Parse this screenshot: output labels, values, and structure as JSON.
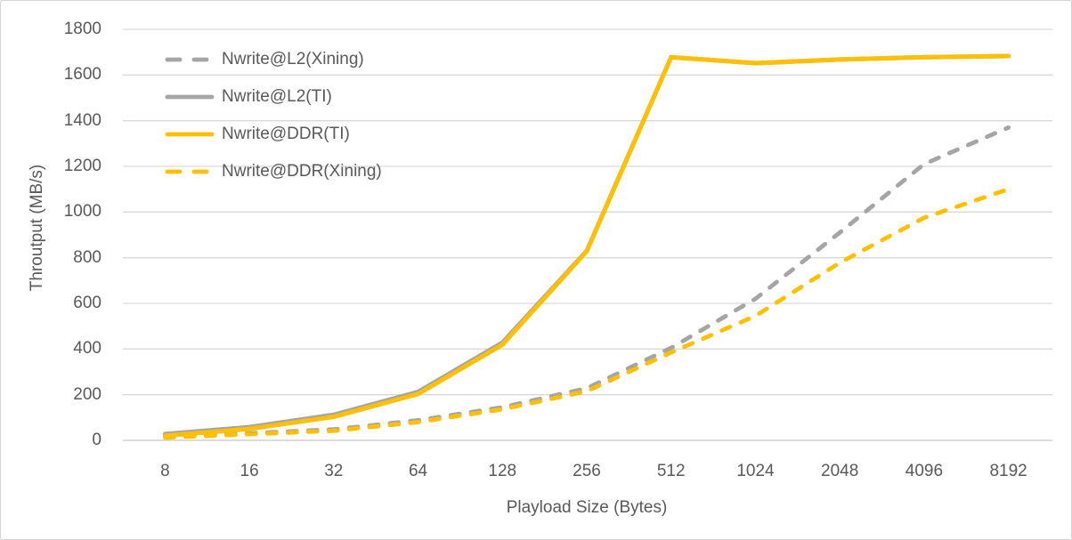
{
  "window": {
    "background": "#ffffff",
    "border_color": "#d4d4d4"
  },
  "chart_data": {
    "type": "line",
    "title": "",
    "xlabel": "Playload Size (Bytes)",
    "ylabel": "Throutput (MB/s)",
    "categories": [
      "8",
      "16",
      "32",
      "64",
      "128",
      "256",
      "512",
      "1024",
      "2048",
      "4096",
      "8192"
    ],
    "y_ticks": [
      0,
      200,
      400,
      600,
      800,
      1000,
      1200,
      1400,
      1600,
      1800
    ],
    "ylim": [
      0,
      1800
    ],
    "grid": true,
    "legend_position": "inside-top-left",
    "colors": {
      "gray_series": "#a5a5a5",
      "yellow_series": "#ffc000",
      "gridline": "#d9d9d9",
      "axis_line": "#c8c8c8",
      "text": "#595959"
    },
    "series": [
      {
        "name": "Nwrite@L2(Xining)",
        "color": "#a5a5a5",
        "dash": true,
        "values": [
          18,
          31,
          48,
          88,
          145,
          228,
          405,
          620,
          910,
          1210,
          1370
        ]
      },
      {
        "name": "Nwrite@L2(TI)",
        "color": "#a5a5a5",
        "dash": false,
        "values": [
          28,
          58,
          112,
          212,
          428,
          830,
          1678,
          1652,
          1668,
          1678,
          1683
        ]
      },
      {
        "name": "Nwrite@DDR(TI)",
        "color": "#ffc000",
        "dash": false,
        "values": [
          20,
          50,
          103,
          203,
          419,
          828,
          1678,
          1652,
          1668,
          1678,
          1683
        ]
      },
      {
        "name": "Nwrite@DDR(Xining)",
        "color": "#ffc000",
        "dash": true,
        "values": [
          12,
          27,
          42,
          80,
          136,
          215,
          385,
          545,
          778,
          975,
          1100
        ]
      }
    ]
  }
}
